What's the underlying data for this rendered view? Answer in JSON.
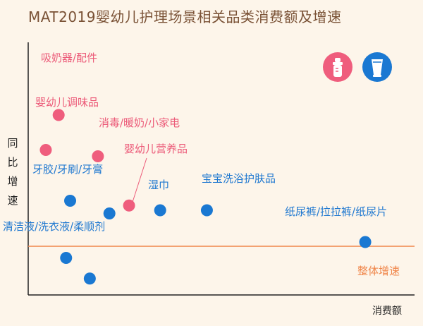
{
  "chart_data": {
    "type": "scatter",
    "title": "MAT2019婴幼儿护理场景相关品类消费额及增速",
    "xlabel": "消费额",
    "ylabel": "同比增速",
    "reference_line": {
      "label": "整体增速",
      "color": "#f0864a"
    },
    "series": [
      {
        "name": "bottle-category",
        "color": "#ef5d7d",
        "label_color": "#ec5b79",
        "icon": "baby-bottle-icon"
      },
      {
        "name": "care-category",
        "color": "#1a78d2",
        "label_color": "#1f78d0",
        "icon": "cream-tube-icon"
      }
    ],
    "points": [
      {
        "label": "吸奶器/配件",
        "series": 0,
        "x": 4.5,
        "y": 9.2
      },
      {
        "label": "婴幼儿调味品",
        "series": 0,
        "x": 2.6,
        "y": 7.0
      },
      {
        "label": "消毒/暖奶/小家电",
        "series": 0,
        "x": 10.3,
        "y": 6.6
      },
      {
        "label": "婴幼儿营养品",
        "series": 0,
        "x": 14.9,
        "y": 3.5
      },
      {
        "label": "牙胶/牙刷/牙膏",
        "series": 1,
        "x": 6.2,
        "y": 3.8
      },
      {
        "label": "",
        "series": 1,
        "x": 12.0,
        "y": 3.0
      },
      {
        "label": "湿巾",
        "series": 1,
        "x": 19.5,
        "y": 3.2
      },
      {
        "label": "宝宝洗浴护肤品",
        "series": 1,
        "x": 26.4,
        "y": 3.2
      },
      {
        "label": "纸尿裤/拉拉裤/纸尿片",
        "series": 1,
        "x": 49.8,
        "y": 1.2
      },
      {
        "label": "清洁液/洗衣液/柔顺剂",
        "series": 1,
        "x": 5.6,
        "y": 0.2
      },
      {
        "label": "",
        "series": 1,
        "x": 9.1,
        "y": -1.1
      }
    ]
  }
}
